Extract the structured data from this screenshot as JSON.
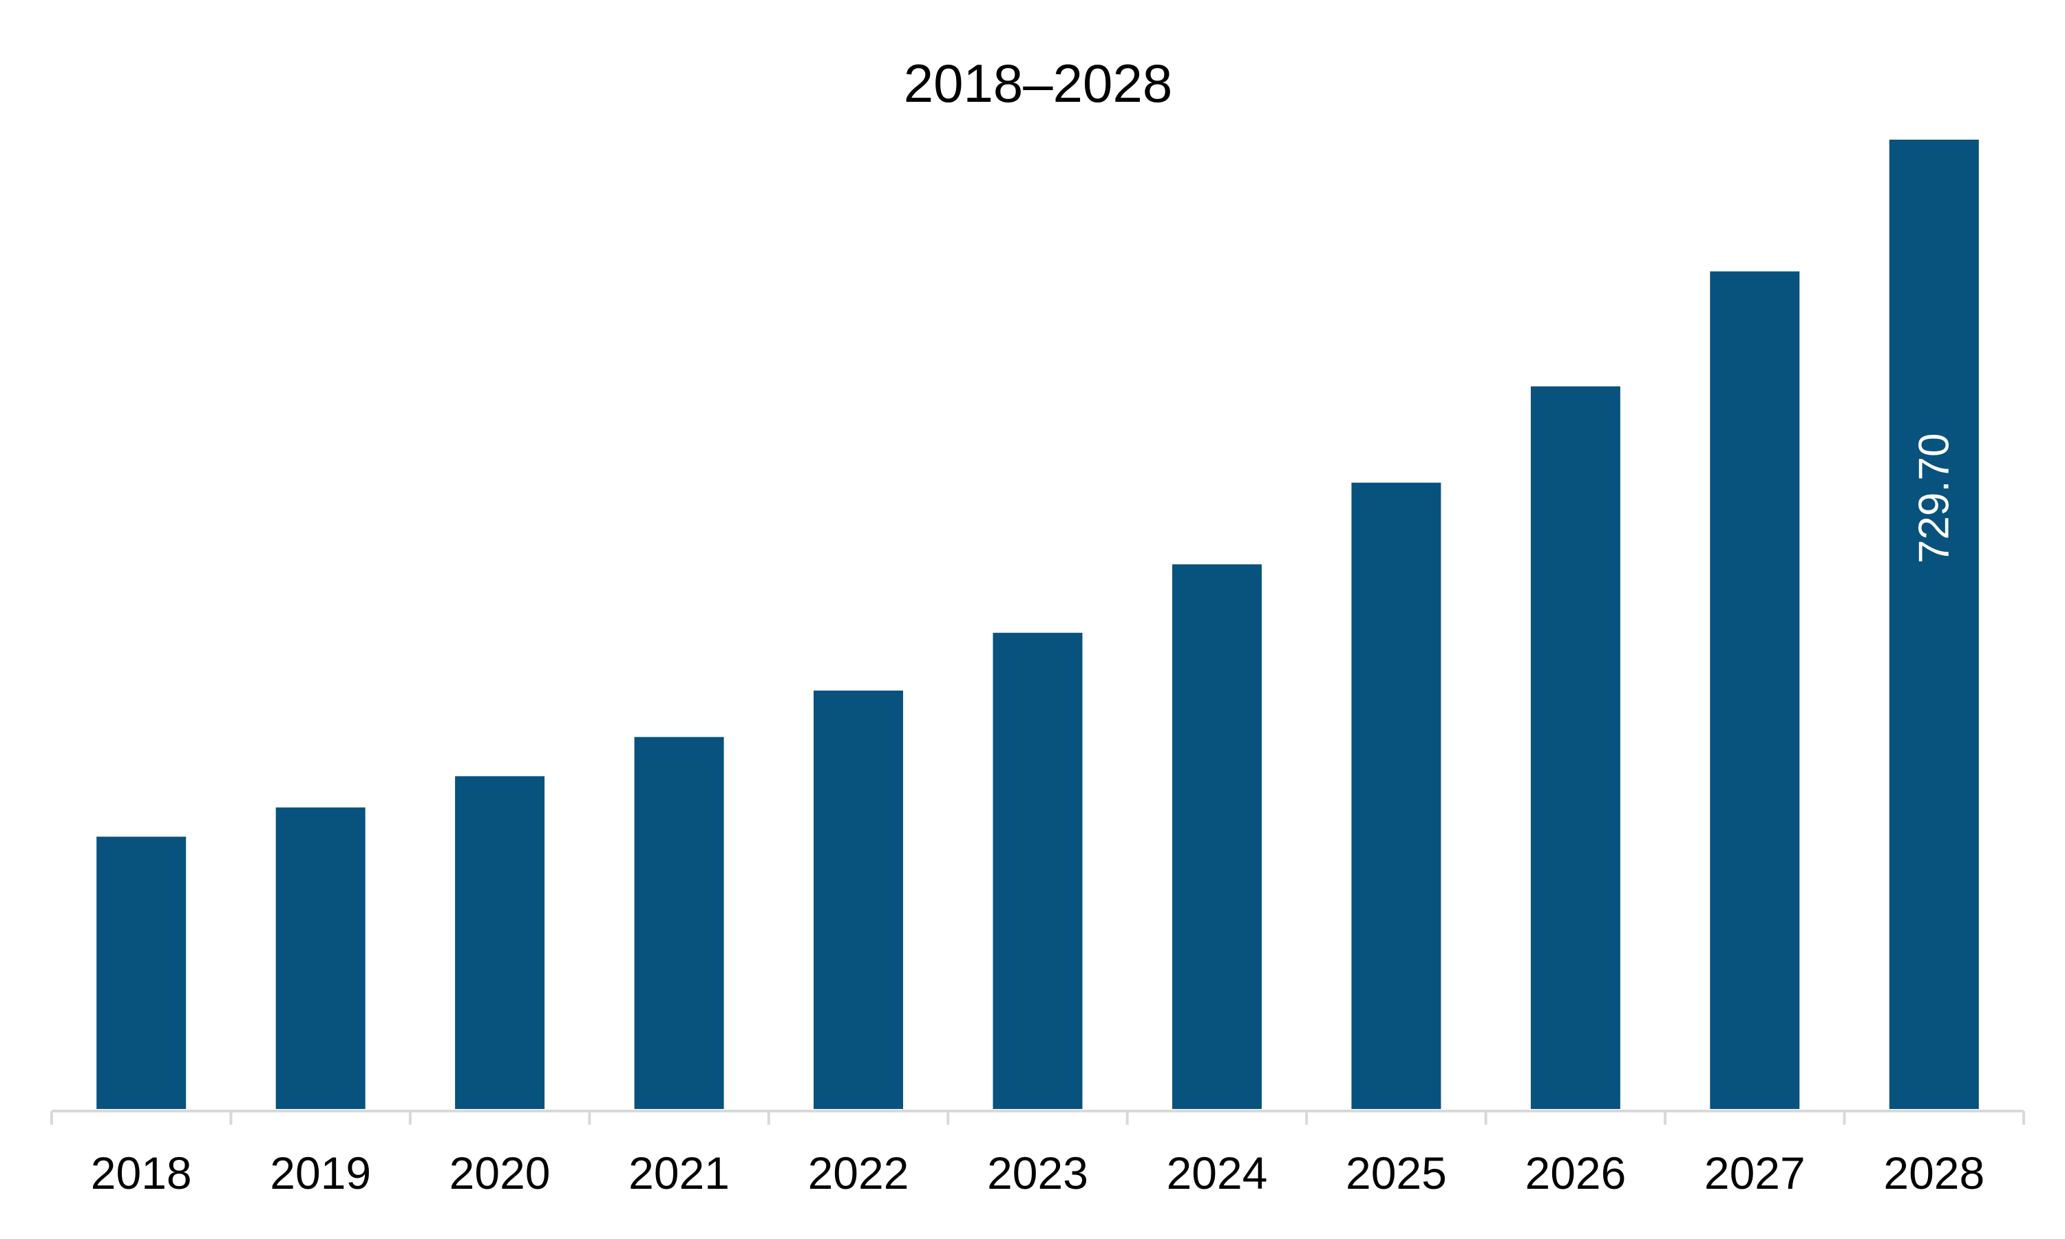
{
  "chart_data": {
    "type": "bar",
    "title": "2018–2028",
    "xlabel": "",
    "ylabel": "",
    "categories": [
      "2018",
      "2019",
      "2020",
      "2021",
      "2022",
      "2023",
      "2024",
      "2025",
      "2026",
      "2027",
      "2028"
    ],
    "values": [
      205.0,
      227.0,
      250.5,
      280.0,
      315.0,
      358.5,
      410.0,
      471.5,
      544.0,
      630.5,
      729.7
    ],
    "data_labels": [
      {
        "category": "2028",
        "text": "729.70",
        "orientation": "vertical"
      }
    ],
    "ylim": [
      0,
      729.7
    ],
    "grid": false,
    "legend": "none",
    "colors": {
      "bar": "#08527E",
      "axis": "#D9D9D9",
      "text": "#000000",
      "data_label": "#FFFFFF"
    }
  }
}
